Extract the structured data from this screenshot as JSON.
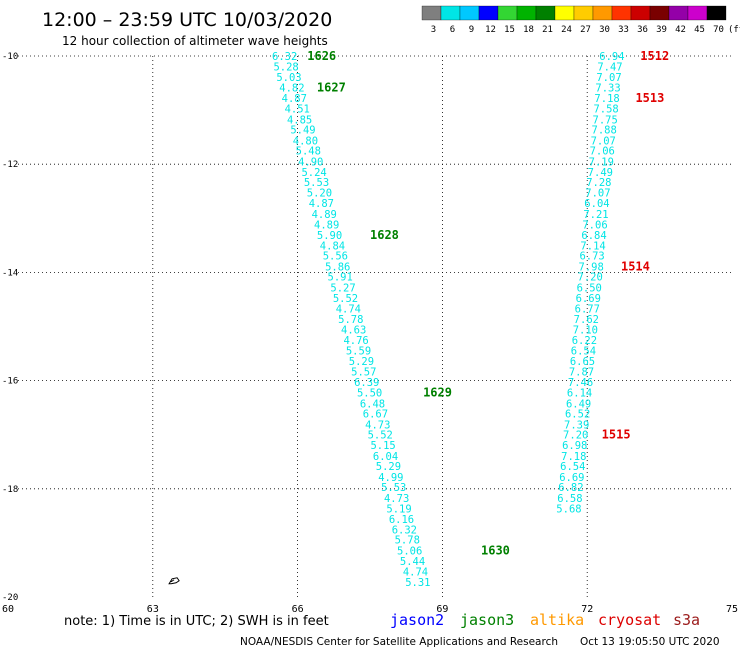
{
  "header": {
    "title": "12:00 – 23:59 UTC 10/03/2020",
    "subtitle": "12 hour collection of altimeter wave heights"
  },
  "colorbar": {
    "unit": "(ft)",
    "labels": [
      "3",
      "6",
      "9",
      "12",
      "15",
      "18",
      "21",
      "24",
      "27",
      "30",
      "33",
      "36",
      "39",
      "42",
      "45",
      "70"
    ],
    "colors": [
      "#7f7f7f",
      "#00e5e5",
      "#00c8ff",
      "#0000ff",
      "#33d633",
      "#00b300",
      "#008000",
      "#ffff00",
      "#ffcc00",
      "#ff9900",
      "#ff3300",
      "#cc0000",
      "#7a0000",
      "#9400a8",
      "#cc00cc",
      "#000000"
    ]
  },
  "map": {
    "lon_range": [
      60,
      75
    ],
    "lat_range": [
      -20,
      -10
    ],
    "lon_ticks": [
      "60",
      "63",
      "66",
      "69",
      "72",
      "75"
    ],
    "lat_ticks": [
      "-10",
      "-12",
      "-14",
      "-16",
      "-18",
      "-20"
    ],
    "grid": "dotted"
  },
  "tracks": [
    {
      "satellite": "jason3",
      "color": "#00e5e5",
      "points": [
        {
          "lon": 66.05,
          "lat": -10.0,
          "swh": "6.32"
        },
        {
          "lon": 66.08,
          "lat": -10.19,
          "swh": "5.28"
        },
        {
          "lon": 66.14,
          "lat": -10.39,
          "swh": "5.03"
        },
        {
          "lon": 66.2,
          "lat": -10.58,
          "swh": "4.82"
        },
        {
          "lon": 66.25,
          "lat": -10.78,
          "swh": "4.87"
        },
        {
          "lon": 66.31,
          "lat": -10.97,
          "swh": "4.51"
        },
        {
          "lon": 66.36,
          "lat": -11.17,
          "swh": "4.85"
        },
        {
          "lon": 66.43,
          "lat": -11.36,
          "swh": "5.49"
        },
        {
          "lon": 66.48,
          "lat": -11.56,
          "swh": "4.80"
        },
        {
          "lon": 66.54,
          "lat": -11.75,
          "swh": "5.48"
        },
        {
          "lon": 66.59,
          "lat": -11.95,
          "swh": "4.90"
        },
        {
          "lon": 66.66,
          "lat": -12.14,
          "swh": "5.24"
        },
        {
          "lon": 66.71,
          "lat": -12.33,
          "swh": "5.53"
        },
        {
          "lon": 66.77,
          "lat": -12.52,
          "swh": "5.20"
        },
        {
          "lon": 66.81,
          "lat": -12.72,
          "swh": "4.87"
        },
        {
          "lon": 66.87,
          "lat": -12.92,
          "swh": "4.89"
        },
        {
          "lon": 66.92,
          "lat": -13.11,
          "swh": "4.89"
        },
        {
          "lon": 66.98,
          "lat": -13.31,
          "swh": "5.90"
        },
        {
          "lon": 67.04,
          "lat": -13.5,
          "swh": "4.84"
        },
        {
          "lon": 67.1,
          "lat": -13.69,
          "swh": "5.56"
        },
        {
          "lon": 67.15,
          "lat": -13.89,
          "swh": "5.86"
        },
        {
          "lon": 67.2,
          "lat": -14.08,
          "swh": "5.91"
        },
        {
          "lon": 67.26,
          "lat": -14.28,
          "swh": "5.27"
        },
        {
          "lon": 67.31,
          "lat": -14.47,
          "swh": "5.52"
        },
        {
          "lon": 67.37,
          "lat": -14.67,
          "swh": "4.74"
        },
        {
          "lon": 67.42,
          "lat": -14.86,
          "swh": "5.78"
        },
        {
          "lon": 67.48,
          "lat": -15.06,
          "swh": "4.63"
        },
        {
          "lon": 67.53,
          "lat": -15.25,
          "swh": "4.76"
        },
        {
          "lon": 67.58,
          "lat": -15.44,
          "swh": "5.59"
        },
        {
          "lon": 67.64,
          "lat": -15.64,
          "swh": "5.29"
        },
        {
          "lon": 67.69,
          "lat": -15.83,
          "swh": "5.57"
        },
        {
          "lon": 67.75,
          "lat": -16.03,
          "swh": "6.39"
        },
        {
          "lon": 67.81,
          "lat": -16.22,
          "swh": "5.50"
        },
        {
          "lon": 67.87,
          "lat": -16.42,
          "swh": "6.48"
        },
        {
          "lon": 67.93,
          "lat": -16.61,
          "swh": "6.67"
        },
        {
          "lon": 67.98,
          "lat": -16.81,
          "swh": "4.73"
        },
        {
          "lon": 68.03,
          "lat": -17.0,
          "swh": "5.52"
        },
        {
          "lon": 68.09,
          "lat": -17.19,
          "swh": "5.15"
        },
        {
          "lon": 68.14,
          "lat": -17.39,
          "swh": "6.04"
        },
        {
          "lon": 68.2,
          "lat": -17.58,
          "swh": "5.29"
        },
        {
          "lon": 68.25,
          "lat": -17.78,
          "swh": "4.99"
        },
        {
          "lon": 68.31,
          "lat": -17.97,
          "swh": "5.53"
        },
        {
          "lon": 68.37,
          "lat": -18.17,
          "swh": "4.73"
        },
        {
          "lon": 68.42,
          "lat": -18.36,
          "swh": "5.19"
        },
        {
          "lon": 68.47,
          "lat": -18.56,
          "swh": "6.16"
        },
        {
          "lon": 68.53,
          "lat": -18.75,
          "swh": "6.32"
        },
        {
          "lon": 68.59,
          "lat": -18.94,
          "swh": "5.78"
        },
        {
          "lon": 68.64,
          "lat": -19.14,
          "swh": "5.06"
        },
        {
          "lon": 68.7,
          "lat": -19.33,
          "swh": "5.44"
        },
        {
          "lon": 68.76,
          "lat": -19.53,
          "swh": "4.74"
        },
        {
          "lon": 68.81,
          "lat": -19.72,
          "swh": "5.31"
        }
      ],
      "time_labels": [
        {
          "text": "1626",
          "lon": 66.2,
          "lat": -10.0
        },
        {
          "text": "1627",
          "lon": 66.4,
          "lat": -10.58
        },
        {
          "text": "1628",
          "lon": 67.5,
          "lat": -13.31
        },
        {
          "text": "1629",
          "lon": 68.6,
          "lat": -16.22
        },
        {
          "text": "1630",
          "lon": 69.8,
          "lat": -19.14
        }
      ]
    },
    {
      "satellite": "cryosat",
      "color": "#00e5e5",
      "points": [
        {
          "lon": 72.83,
          "lat": -10.0,
          "swh": "6.94"
        },
        {
          "lon": 72.79,
          "lat": -10.19,
          "swh": "7.47"
        },
        {
          "lon": 72.77,
          "lat": -10.39,
          "swh": "7.07"
        },
        {
          "lon": 72.75,
          "lat": -10.58,
          "swh": "7.33"
        },
        {
          "lon": 72.73,
          "lat": -10.78,
          "swh": "7.18"
        },
        {
          "lon": 72.71,
          "lat": -10.97,
          "swh": "7.58"
        },
        {
          "lon": 72.69,
          "lat": -11.17,
          "swh": "7.75"
        },
        {
          "lon": 72.67,
          "lat": -11.36,
          "swh": "7.88"
        },
        {
          "lon": 72.65,
          "lat": -11.56,
          "swh": "7.07"
        },
        {
          "lon": 72.63,
          "lat": -11.75,
          "swh": "7.06"
        },
        {
          "lon": 72.61,
          "lat": -11.95,
          "swh": "7.19"
        },
        {
          "lon": 72.59,
          "lat": -12.14,
          "swh": "7.49"
        },
        {
          "lon": 72.56,
          "lat": -12.33,
          "swh": "7.28"
        },
        {
          "lon": 72.54,
          "lat": -12.52,
          "swh": "7.07"
        },
        {
          "lon": 72.52,
          "lat": -12.72,
          "swh": "6.04"
        },
        {
          "lon": 72.5,
          "lat": -12.92,
          "swh": "7.21"
        },
        {
          "lon": 72.48,
          "lat": -13.11,
          "swh": "7.06"
        },
        {
          "lon": 72.46,
          "lat": -13.31,
          "swh": "6.84"
        },
        {
          "lon": 72.44,
          "lat": -13.5,
          "swh": "7.14"
        },
        {
          "lon": 72.42,
          "lat": -13.69,
          "swh": "6.73"
        },
        {
          "lon": 72.4,
          "lat": -13.89,
          "swh": "7.98"
        },
        {
          "lon": 72.38,
          "lat": -14.08,
          "swh": "7.20"
        },
        {
          "lon": 72.36,
          "lat": -14.28,
          "swh": "6.50"
        },
        {
          "lon": 72.34,
          "lat": -14.47,
          "swh": "6.69"
        },
        {
          "lon": 72.32,
          "lat": -14.67,
          "swh": "6.77"
        },
        {
          "lon": 72.3,
          "lat": -14.86,
          "swh": "7.62"
        },
        {
          "lon": 72.28,
          "lat": -15.06,
          "swh": "7.10"
        },
        {
          "lon": 72.26,
          "lat": -15.25,
          "swh": "6.22"
        },
        {
          "lon": 72.24,
          "lat": -15.44,
          "swh": "6.54"
        },
        {
          "lon": 72.22,
          "lat": -15.64,
          "swh": "6.65"
        },
        {
          "lon": 72.2,
          "lat": -15.83,
          "swh": "7.87"
        },
        {
          "lon": 72.18,
          "lat": -16.03,
          "swh": "7.46"
        },
        {
          "lon": 72.16,
          "lat": -16.22,
          "swh": "6.14"
        },
        {
          "lon": 72.14,
          "lat": -16.42,
          "swh": "6.49"
        },
        {
          "lon": 72.12,
          "lat": -16.61,
          "swh": "6.52"
        },
        {
          "lon": 72.1,
          "lat": -16.81,
          "swh": "7.39"
        },
        {
          "lon": 72.08,
          "lat": -17.0,
          "swh": "7.20"
        },
        {
          "lon": 72.06,
          "lat": -17.19,
          "swh": "6.98"
        },
        {
          "lon": 72.04,
          "lat": -17.39,
          "swh": "7.18"
        },
        {
          "lon": 72.02,
          "lat": -17.58,
          "swh": "6.54"
        },
        {
          "lon": 72.0,
          "lat": -17.78,
          "swh": "6.69"
        },
        {
          "lon": 71.98,
          "lat": -17.97,
          "swh": "6.82"
        },
        {
          "lon": 71.96,
          "lat": -18.17,
          "swh": "6.58"
        },
        {
          "lon": 71.94,
          "lat": -18.36,
          "swh": "5.68"
        }
      ],
      "time_labels": [
        {
          "text": "1512",
          "lon": 73.1,
          "lat": -10.0
        },
        {
          "text": "1513",
          "lon": 73.0,
          "lat": -10.78
        },
        {
          "text": "1514",
          "lon": 72.7,
          "lat": -13.89
        },
        {
          "text": "1515",
          "lon": 72.3,
          "lat": -17.0
        }
      ]
    }
  ],
  "island": {
    "lon": 63.4,
    "lat": -19.7
  },
  "legend": {
    "note": "note: 1) Time is in UTC; 2) SWH is in feet",
    "items": [
      {
        "label": "jason2",
        "color": "#0000ff"
      },
      {
        "label": "jason3",
        "color": "#008000"
      },
      {
        "label": "altika",
        "color": "#ff9900"
      },
      {
        "label": "cryosat",
        "color": "#dd0000"
      },
      {
        "label": "s3a",
        "color": "#9b1b1b"
      }
    ]
  },
  "footer": {
    "credit": "NOAA/NESDIS Center for Satellite Applications and Research",
    "timestamp": "Oct 13 19:05:50 UTC 2020"
  }
}
